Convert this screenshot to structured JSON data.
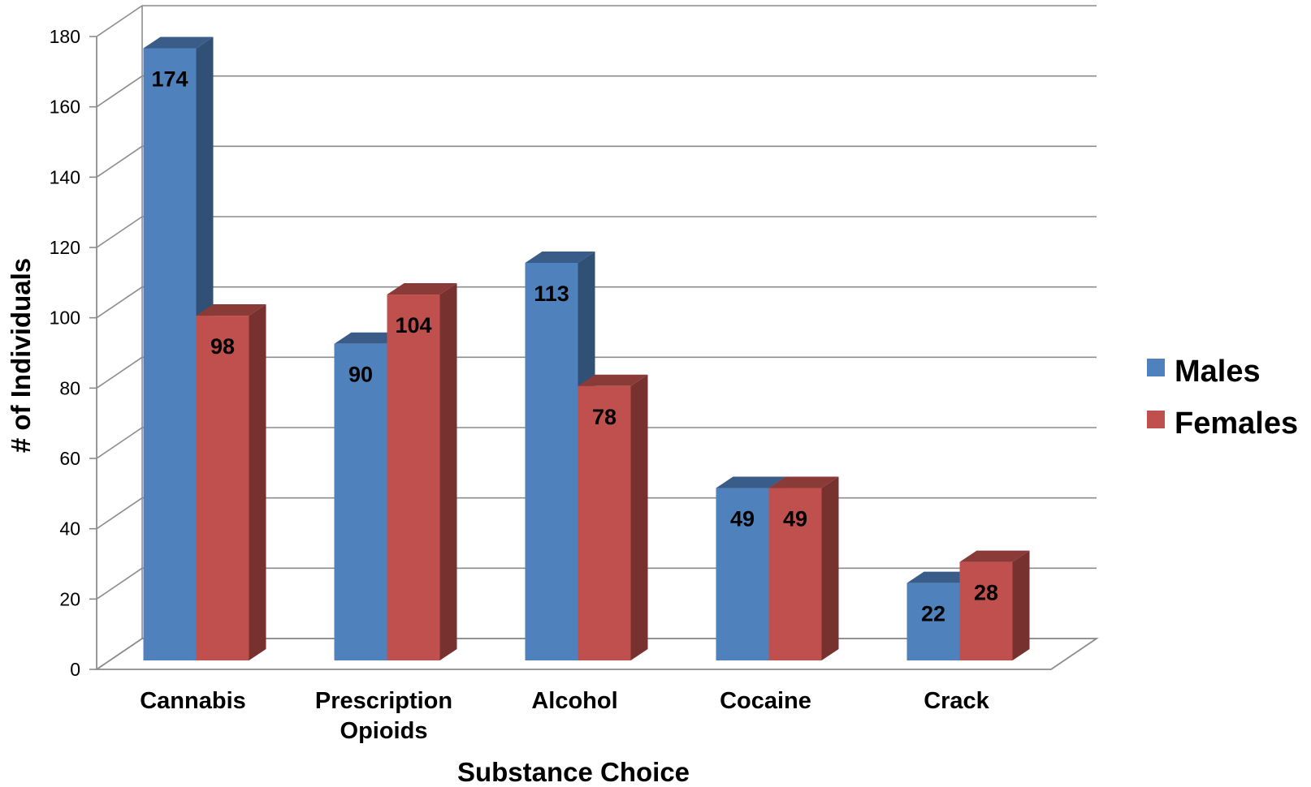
{
  "chart_data": {
    "type": "bar",
    "title": "",
    "xlabel": "Substance Choice",
    "ylabel": "# of Individuals",
    "ylim": [
      0,
      180
    ],
    "yticks": [
      "0",
      "20",
      "40",
      "60",
      "80",
      "100",
      "120",
      "140",
      "160",
      "180"
    ],
    "categories": [
      [
        "Cannabis"
      ],
      [
        "Prescription",
        "Opioids"
      ],
      [
        "Alcohol"
      ],
      [
        "Cocaine"
      ],
      [
        "Crack"
      ]
    ],
    "series": [
      {
        "name": "Males",
        "color": "#4f81bd",
        "values": [
          174,
          90,
          113,
          49,
          22
        ]
      },
      {
        "name": "Females",
        "color": "#c0504d",
        "values": [
          98,
          104,
          78,
          49,
          28
        ]
      }
    ],
    "legend_position": "right",
    "grid": true,
    "style": "3d-clustered-column"
  }
}
